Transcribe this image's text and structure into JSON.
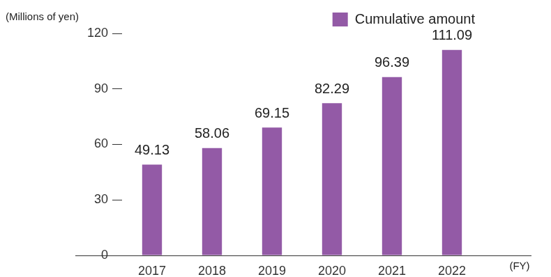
{
  "chart_data": {
    "type": "bar",
    "ylabel": "(Millions of yen)",
    "xlabel": "(FY)",
    "categories": [
      "2017",
      "2018",
      "2019",
      "2020",
      "2021",
      "2022"
    ],
    "series": [
      {
        "name": "Cumulative amount",
        "color": "#935aa6",
        "values": [
          49.13,
          58.06,
          69.15,
          82.29,
          96.39,
          111.09
        ]
      }
    ],
    "ylim": [
      0,
      120
    ],
    "yticks": [
      0,
      30,
      60,
      90,
      120
    ],
    "grid": false,
    "legend": "upper right",
    "data_labels": true
  }
}
